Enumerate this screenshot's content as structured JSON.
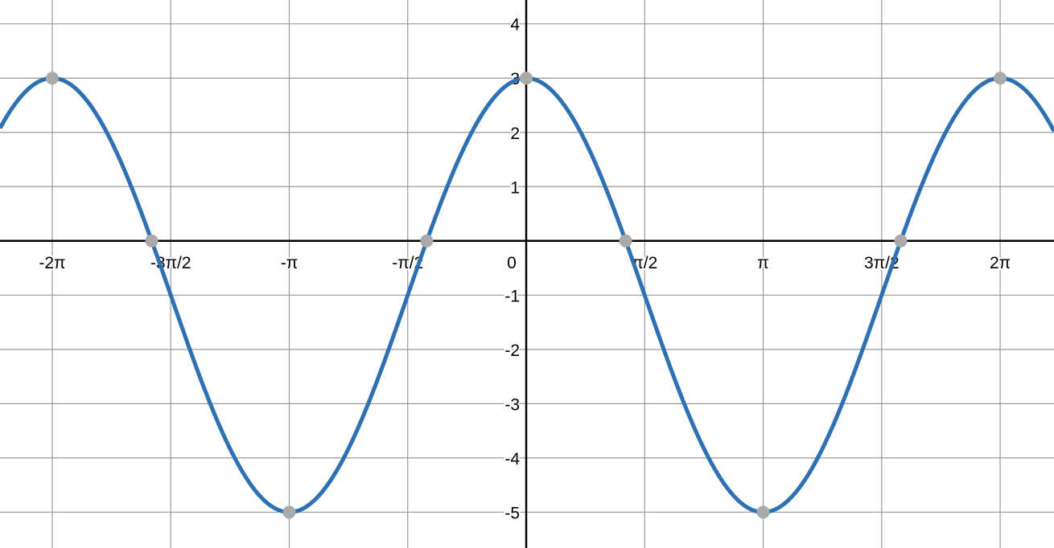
{
  "chart_data": {
    "type": "line",
    "title": "",
    "xlabel": "",
    "ylabel": "",
    "xlim": [
      -6.976,
      6.997
    ],
    "ylim": [
      -5.66,
      4.44
    ],
    "grid": true,
    "x_ticks": [
      {
        "value": -6.2832,
        "label": "-2π"
      },
      {
        "value": -4.7124,
        "label": "-3π/2"
      },
      {
        "value": -3.1416,
        "label": "-π"
      },
      {
        "value": -1.5708,
        "label": "-π/2"
      },
      {
        "value": 0,
        "label": "0"
      },
      {
        "value": 1.5708,
        "label": "π/2"
      },
      {
        "value": 3.1416,
        "label": "π"
      },
      {
        "value": 4.7124,
        "label": "3π/2"
      },
      {
        "value": 6.2832,
        "label": "2π"
      }
    ],
    "y_ticks": [
      {
        "value": 4,
        "label": "4"
      },
      {
        "value": 3,
        "label": "3"
      },
      {
        "value": 2,
        "label": "2"
      },
      {
        "value": 1,
        "label": "1"
      },
      {
        "value": -1,
        "label": "-1"
      },
      {
        "value": -2,
        "label": "-2"
      },
      {
        "value": -3,
        "label": "-3"
      },
      {
        "value": -4,
        "label": "-4"
      },
      {
        "value": -5,
        "label": "-5"
      }
    ],
    "series": [
      {
        "amplitude": 4,
        "offset": -1,
        "function": "cos",
        "color": "#2d70b3"
      }
    ],
    "points": [
      {
        "x": -6.2832,
        "y": 3
      },
      {
        "x": -4.9654,
        "y": 0
      },
      {
        "x": -3.1416,
        "y": -5
      },
      {
        "x": -1.3181,
        "y": 0
      },
      {
        "x": 0,
        "y": 3
      },
      {
        "x": 1.3181,
        "y": 0
      },
      {
        "x": 3.1416,
        "y": -5
      },
      {
        "x": 4.9654,
        "y": 0
      },
      {
        "x": 6.2832,
        "y": 3
      }
    ],
    "point_color": "#aaaaaa",
    "grid_color": "#999999",
    "axis_color": "#000000"
  }
}
